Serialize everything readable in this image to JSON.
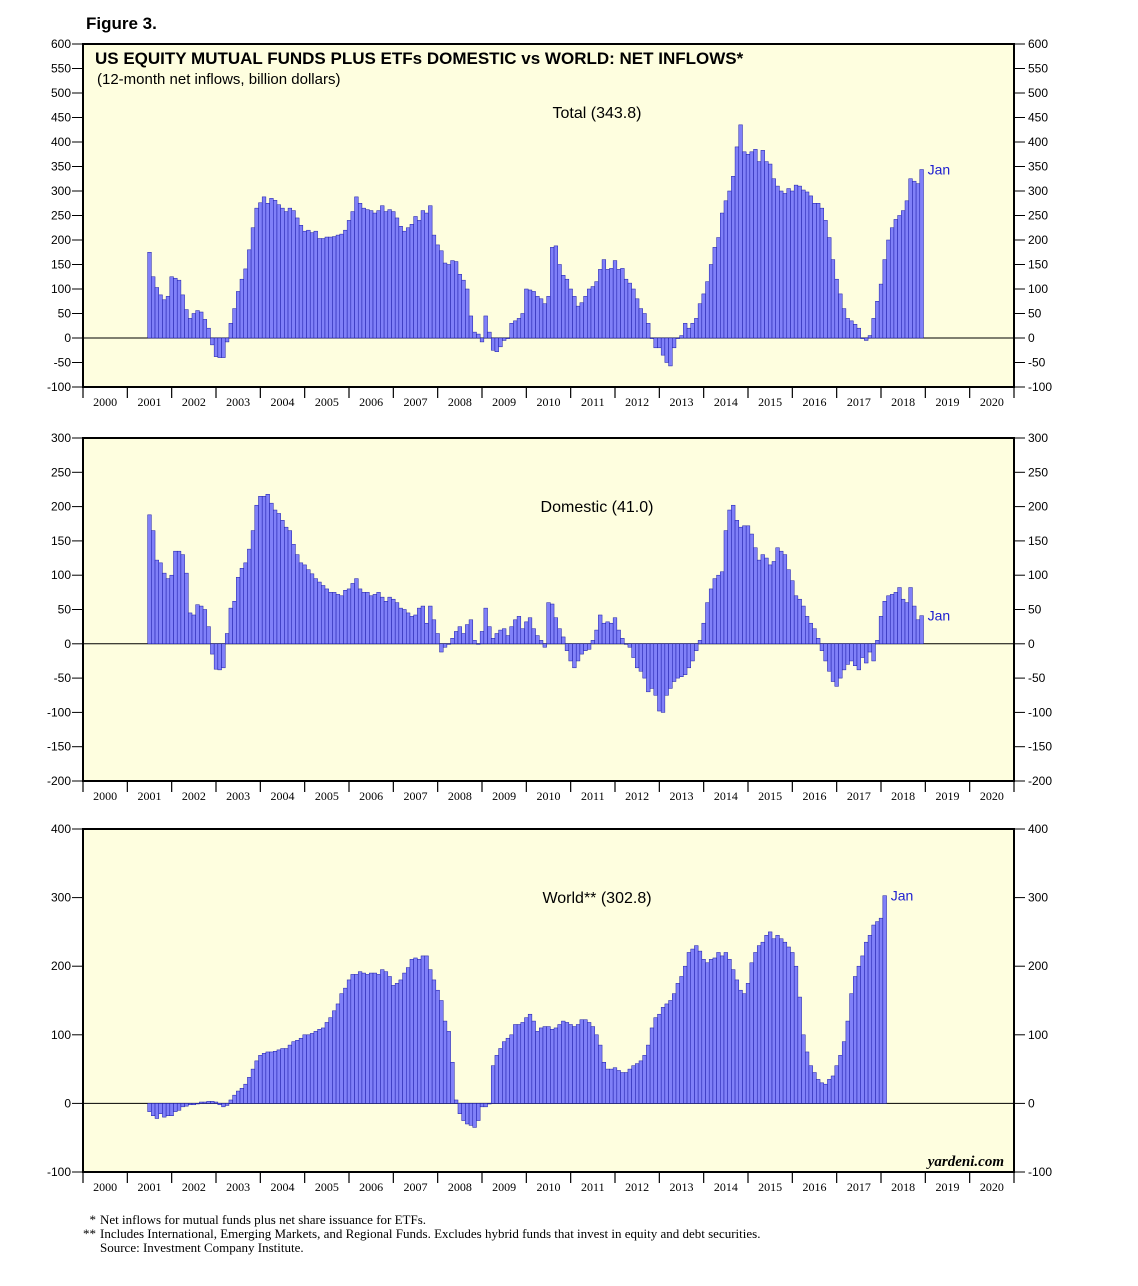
{
  "figure_label": "Figure 3.",
  "colors": {
    "bar_fill": "#8080f8",
    "bar_stroke": "#1a1aa8",
    "panel_bg": "#fefedf",
    "last_label": "#2020d0"
  },
  "x_axis": {
    "years": [
      "2000",
      "2001",
      "2002",
      "2003",
      "2004",
      "2005",
      "2006",
      "2007",
      "2008",
      "2009",
      "2010",
      "2011",
      "2012",
      "2013",
      "2014",
      "2015",
      "2016",
      "2017",
      "2018",
      "2019",
      "2020"
    ],
    "xlim": [
      2000,
      2021
    ]
  },
  "chart_data": [
    {
      "type": "bar",
      "title": "US EQUITY MUTUAL FUNDS PLUS ETFs DOMESTIC vs WORLD: NET INFLOWS*",
      "subtitle": "(12-month net inflows, billion dollars)",
      "series_label": "Total (343.8)",
      "last_label": "Jan",
      "ylim": [
        -100,
        600
      ],
      "yticks": [
        -100,
        -50,
        0,
        50,
        100,
        150,
        200,
        250,
        300,
        350,
        400,
        450,
        500,
        550,
        600
      ],
      "x_start": 2001.5,
      "x_step": 0.0833333,
      "values": [
        175,
        125,
        103,
        88,
        78,
        85,
        125,
        122,
        118,
        88,
        58,
        40,
        50,
        56,
        53,
        38,
        20,
        -14,
        -38,
        -40,
        -40,
        -8,
        30,
        60,
        95,
        120,
        141,
        180,
        225,
        265,
        276,
        288,
        275,
        285,
        281,
        272,
        265,
        258,
        265,
        260,
        245,
        230,
        218,
        220,
        215,
        218,
        203,
        203,
        206,
        206,
        207,
        210,
        212,
        220,
        240,
        258,
        288,
        275,
        265,
        262,
        260,
        255,
        260,
        270,
        258,
        262,
        258,
        245,
        228,
        218,
        225,
        232,
        248,
        240,
        260,
        255,
        270,
        210,
        190,
        178,
        153,
        150,
        158,
        156,
        130,
        118,
        100,
        45,
        12,
        8,
        -8,
        45,
        12,
        -25,
        -28,
        -18,
        -5,
        0,
        30,
        35,
        40,
        50,
        100,
        98,
        95,
        85,
        80,
        70,
        85,
        185,
        188,
        150,
        128,
        120,
        100,
        85,
        65,
        72,
        85,
        100,
        105,
        115,
        140,
        160,
        140,
        142,
        158,
        140,
        142,
        120,
        112,
        100,
        80,
        60,
        50,
        30,
        0,
        -20,
        -20,
        -35,
        -50,
        -57,
        -20,
        0,
        5,
        30,
        20,
        30,
        40,
        70,
        90,
        115,
        150,
        185,
        205,
        255,
        280,
        300,
        330,
        390,
        435,
        380,
        375,
        380,
        385,
        360,
        383,
        360,
        355,
        325,
        310,
        300,
        295,
        305,
        300,
        312,
        310,
        302,
        298,
        290,
        275,
        275,
        265,
        240,
        205,
        160,
        120,
        90,
        60,
        40,
        35,
        28,
        20,
        0,
        -5,
        5,
        40,
        75,
        110,
        160,
        200,
        225,
        242,
        250,
        260,
        280,
        325,
        320,
        315,
        343.8
      ]
    },
    {
      "type": "bar",
      "series_label": "Domestic (41.0)",
      "last_label": "Jan",
      "ylim": [
        -200,
        300
      ],
      "yticks": [
        -200,
        -150,
        -100,
        -50,
        0,
        50,
        100,
        150,
        200,
        250,
        300
      ],
      "x_start": 2001.5,
      "x_step": 0.0833333,
      "values": [
        188,
        165,
        122,
        118,
        103,
        95,
        100,
        135,
        135,
        130,
        103,
        45,
        42,
        57,
        55,
        50,
        25,
        -15,
        -37,
        -38,
        -35,
        15,
        52,
        62,
        97,
        110,
        118,
        138,
        165,
        202,
        215,
        215,
        218,
        205,
        195,
        190,
        180,
        170,
        165,
        145,
        130,
        118,
        115,
        108,
        102,
        95,
        90,
        85,
        80,
        75,
        75,
        72,
        70,
        78,
        80,
        88,
        95,
        80,
        75,
        75,
        70,
        72,
        75,
        68,
        62,
        68,
        65,
        60,
        52,
        50,
        45,
        40,
        42,
        52,
        55,
        30,
        55,
        35,
        15,
        -12,
        -5,
        0,
        8,
        18,
        25,
        15,
        28,
        35,
        5,
        0,
        18,
        52,
        25,
        8,
        15,
        20,
        22,
        12,
        25,
        35,
        40,
        22,
        32,
        38,
        22,
        12,
        5,
        -5,
        60,
        58,
        38,
        22,
        10,
        -10,
        -25,
        -35,
        -25,
        -15,
        -10,
        -8,
        5,
        20,
        42,
        30,
        32,
        30,
        38,
        20,
        8,
        0,
        -5,
        -20,
        -35,
        -40,
        -50,
        -70,
        -65,
        -75,
        -98,
        -100,
        -75,
        -65,
        -55,
        -50,
        -48,
        -45,
        -35,
        -25,
        -10,
        5,
        30,
        60,
        80,
        95,
        100,
        105,
        165,
        195,
        202,
        180,
        170,
        172,
        172,
        160,
        140,
        122,
        130,
        125,
        115,
        120,
        140,
        135,
        130,
        108,
        92,
        70,
        65,
        55,
        40,
        30,
        22,
        8,
        -10,
        -25,
        -40,
        -55,
        -62,
        -50,
        -38,
        -30,
        -25,
        -32,
        -38,
        -20,
        -28,
        -12,
        -25,
        5,
        40,
        62,
        70,
        72,
        75,
        82,
        65,
        60,
        82,
        55,
        35,
        41.0
      ]
    },
    {
      "type": "bar",
      "series_label": "World** (302.8)",
      "last_label": "Jan",
      "ylim": [
        -100,
        400
      ],
      "yticks": [
        -100,
        0,
        100,
        200,
        300,
        400
      ],
      "x_start": 2001.5,
      "x_step": 0.0833333,
      "values": [
        -12,
        -18,
        -22,
        -15,
        -20,
        -18,
        -18,
        -12,
        -10,
        -5,
        -4,
        -2,
        -2,
        0,
        2,
        2,
        3,
        3,
        2,
        -2,
        -5,
        -3,
        5,
        12,
        18,
        22,
        28,
        38,
        50,
        62,
        70,
        73,
        75,
        75,
        76,
        78,
        80,
        80,
        85,
        90,
        92,
        95,
        100,
        100,
        102,
        105,
        108,
        110,
        118,
        125,
        135,
        145,
        160,
        168,
        180,
        188,
        188,
        192,
        190,
        188,
        190,
        190,
        188,
        195,
        192,
        185,
        172,
        175,
        180,
        190,
        198,
        210,
        212,
        210,
        215,
        215,
        195,
        180,
        165,
        150,
        120,
        105,
        60,
        5,
        -15,
        -25,
        -30,
        -32,
        -35,
        -25,
        -5,
        -5,
        0,
        55,
        70,
        80,
        90,
        95,
        100,
        115,
        115,
        118,
        125,
        130,
        120,
        105,
        110,
        112,
        112,
        108,
        110,
        115,
        120,
        118,
        115,
        112,
        115,
        122,
        122,
        118,
        112,
        100,
        85,
        60,
        50,
        50,
        52,
        48,
        45,
        45,
        50,
        55,
        58,
        62,
        70,
        85,
        110,
        125,
        130,
        140,
        145,
        150,
        160,
        175,
        185,
        200,
        220,
        225,
        230,
        222,
        210,
        205,
        210,
        212,
        220,
        215,
        220,
        210,
        195,
        180,
        165,
        160,
        175,
        205,
        220,
        230,
        235,
        245,
        250,
        240,
        245,
        240,
        235,
        228,
        220,
        200,
        155,
        100,
        75,
        55,
        45,
        35,
        30,
        28,
        35,
        40,
        55,
        70,
        90,
        120,
        160,
        185,
        200,
        215,
        235,
        245,
        260,
        265,
        270,
        302.8
      ]
    }
  ],
  "brand": "yardeni.com",
  "footnotes": [
    {
      "mark": "*",
      "text": "Net inflows for mutual funds plus net share issuance for ETFs."
    },
    {
      "mark": "**",
      "text": "Includes International, Emerging Markets, and Regional Funds. Excludes hybrid funds that invest in equity and debt securities."
    },
    {
      "mark": "",
      "text": "Source: Investment Company Institute."
    }
  ]
}
